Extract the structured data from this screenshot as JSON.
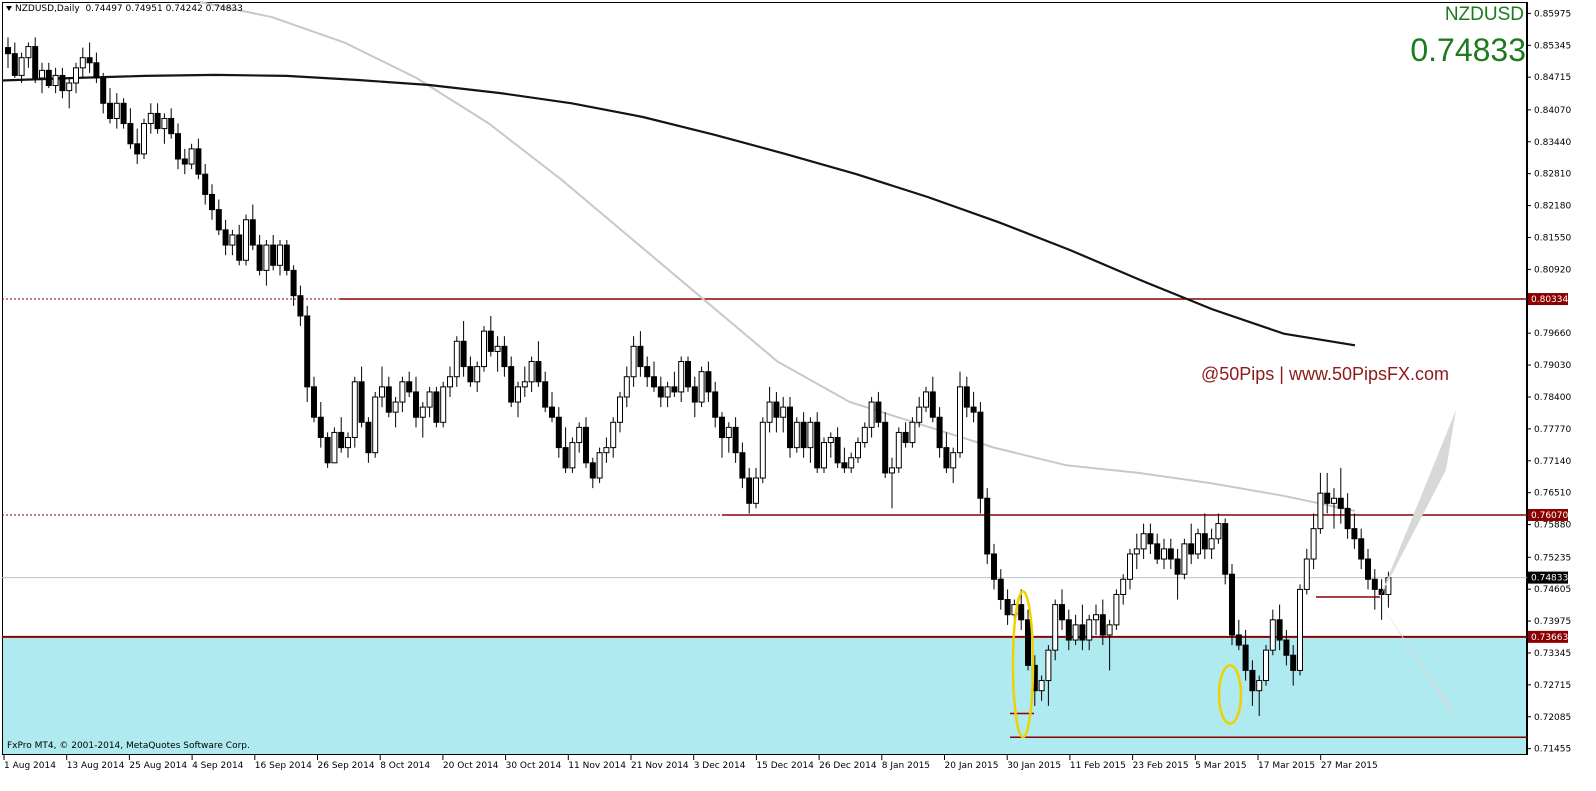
{
  "header": {
    "symbol_tf": "NZDUSD,Daily",
    "ohlc": "0.74497 0.74951 0.74242 0.74833",
    "symbol": "NZDUSD",
    "price": "0.74833"
  },
  "watermark": "@50Pips | www.50PipsFX.com",
  "copyright": "FxPro MT4, © 2001-2014, MetaQuotes Software Corp.",
  "colors": {
    "up_candle": "#ffffff",
    "down_candle": "#000000",
    "ma_slow": "#141414",
    "ma_fast": "#c8c8c8",
    "levels": "#8b0000",
    "zone": "#aeeaf0",
    "ellipse": "#f0d000",
    "text_green": "#1e7a1e"
  },
  "chart_data": {
    "type": "candlestick",
    "y_axis": {
      "ticks": [
        "0.85975",
        "0.85345",
        "0.84715",
        "0.84070",
        "0.83440",
        "0.82810",
        "0.82180",
        "0.81550",
        "0.80920",
        "0.79660",
        "0.79030",
        "0.78400",
        "0.77770",
        "0.77140",
        "0.76510",
        "0.75880",
        "0.75235",
        "0.74605",
        "0.73975",
        "0.73345",
        "0.72715",
        "0.72085",
        "0.71455"
      ]
    },
    "x_axis": {
      "ticks": [
        "1 Aug 2014",
        "13 Aug 2014",
        "25 Aug 2014",
        "4 Sep 2014",
        "16 Sep 2014",
        "26 Sep 2014",
        "8 Oct 2014",
        "20 Oct 2014",
        "30 Oct 2014",
        "11 Nov 2014",
        "21 Nov 2014",
        "3 Dec 2014",
        "15 Dec 2014",
        "26 Dec 2014",
        "8 Jan 2015",
        "20 Jan 2015",
        "30 Jan 2015",
        "11 Feb 2015",
        "23 Feb 2015",
        "5 Mar 2015",
        "17 Mar 2015",
        "27 Mar 2015"
      ]
    },
    "levels": [
      {
        "value": 0.80334,
        "label": "0.80334"
      },
      {
        "value": 0.7607,
        "label": "0.76070"
      },
      {
        "value": 0.73663,
        "label": "0.73663"
      }
    ],
    "current": {
      "value": 0.74833,
      "label": "0.74833"
    },
    "support_zone": [
      0.7145,
      0.73663
    ],
    "candles": [
      [
        0.853,
        0.855,
        0.849,
        0.8518
      ],
      [
        0.8518,
        0.854,
        0.847,
        0.8475
      ],
      [
        0.8475,
        0.852,
        0.846,
        0.851
      ],
      [
        0.851,
        0.854,
        0.849,
        0.8532
      ],
      [
        0.8532,
        0.855,
        0.846,
        0.847
      ],
      [
        0.847,
        0.85,
        0.844,
        0.8485
      ],
      [
        0.8485,
        0.85,
        0.845,
        0.8455
      ],
      [
        0.8455,
        0.849,
        0.844,
        0.8475
      ],
      [
        0.8475,
        0.849,
        0.843,
        0.8445
      ],
      [
        0.8445,
        0.847,
        0.841,
        0.846
      ],
      [
        0.846,
        0.85,
        0.844,
        0.849
      ],
      [
        0.849,
        0.853,
        0.847,
        0.851
      ],
      [
        0.851,
        0.854,
        0.848,
        0.85
      ],
      [
        0.85,
        0.852,
        0.846,
        0.847
      ],
      [
        0.847,
        0.848,
        0.84,
        0.842
      ],
      [
        0.842,
        0.845,
        0.838,
        0.839
      ],
      [
        0.839,
        0.844,
        0.837,
        0.842
      ],
      [
        0.842,
        0.843,
        0.837,
        0.838
      ],
      [
        0.838,
        0.841,
        0.833,
        0.834
      ],
      [
        0.834,
        0.837,
        0.83,
        0.832
      ],
      [
        0.832,
        0.839,
        0.831,
        0.838
      ],
      [
        0.838,
        0.842,
        0.836,
        0.84
      ],
      [
        0.84,
        0.842,
        0.836,
        0.837
      ],
      [
        0.837,
        0.84,
        0.834,
        0.839
      ],
      [
        0.839,
        0.841,
        0.835,
        0.836
      ],
      [
        0.836,
        0.838,
        0.829,
        0.831
      ],
      [
        0.831,
        0.833,
        0.828,
        0.83
      ],
      [
        0.83,
        0.834,
        0.829,
        0.833
      ],
      [
        0.833,
        0.835,
        0.827,
        0.828
      ],
      [
        0.828,
        0.83,
        0.822,
        0.824
      ],
      [
        0.824,
        0.826,
        0.819,
        0.821
      ],
      [
        0.821,
        0.823,
        0.816,
        0.817
      ],
      [
        0.817,
        0.819,
        0.812,
        0.814
      ],
      [
        0.814,
        0.817,
        0.812,
        0.816
      ],
      [
        0.816,
        0.818,
        0.81,
        0.811
      ],
      [
        0.811,
        0.82,
        0.81,
        0.819
      ],
      [
        0.819,
        0.822,
        0.813,
        0.814
      ],
      [
        0.814,
        0.816,
        0.808,
        0.809
      ],
      [
        0.809,
        0.815,
        0.806,
        0.814
      ],
      [
        0.814,
        0.816,
        0.809,
        0.81
      ],
      [
        0.81,
        0.815,
        0.808,
        0.814
      ],
      [
        0.814,
        0.815,
        0.808,
        0.809
      ],
      [
        0.809,
        0.81,
        0.802,
        0.804
      ],
      [
        0.804,
        0.806,
        0.798,
        0.8
      ],
      [
        0.8,
        0.802,
        0.783,
        0.786
      ],
      [
        0.786,
        0.788,
        0.779,
        0.78
      ],
      [
        0.78,
        0.783,
        0.774,
        0.776
      ],
      [
        0.776,
        0.777,
        0.77,
        0.771
      ],
      [
        0.771,
        0.778,
        0.771,
        0.777
      ],
      [
        0.777,
        0.78,
        0.773,
        0.774
      ],
      [
        0.774,
        0.777,
        0.772,
        0.776
      ],
      [
        0.776,
        0.788,
        0.774,
        0.787
      ],
      [
        0.787,
        0.79,
        0.778,
        0.779
      ],
      [
        0.779,
        0.78,
        0.771,
        0.773
      ],
      [
        0.773,
        0.785,
        0.772,
        0.784
      ],
      [
        0.784,
        0.79,
        0.782,
        0.786
      ],
      [
        0.786,
        0.788,
        0.78,
        0.781
      ],
      [
        0.781,
        0.784,
        0.778,
        0.783
      ],
      [
        0.783,
        0.788,
        0.781,
        0.787
      ],
      [
        0.787,
        0.789,
        0.784,
        0.785
      ],
      [
        0.785,
        0.788,
        0.778,
        0.78
      ],
      [
        0.78,
        0.783,
        0.776,
        0.782
      ],
      [
        0.782,
        0.786,
        0.78,
        0.785
      ],
      [
        0.785,
        0.786,
        0.778,
        0.779
      ],
      [
        0.779,
        0.787,
        0.778,
        0.786
      ],
      [
        0.786,
        0.79,
        0.784,
        0.788
      ],
      [
        0.788,
        0.796,
        0.786,
        0.795
      ],
      [
        0.795,
        0.799,
        0.788,
        0.79
      ],
      [
        0.79,
        0.792,
        0.786,
        0.787
      ],
      [
        0.787,
        0.791,
        0.785,
        0.79
      ],
      [
        0.79,
        0.798,
        0.789,
        0.797
      ],
      [
        0.797,
        0.8,
        0.792,
        0.793
      ],
      [
        0.793,
        0.796,
        0.789,
        0.794
      ],
      [
        0.794,
        0.796,
        0.788,
        0.79
      ],
      [
        0.79,
        0.792,
        0.782,
        0.783
      ],
      [
        0.783,
        0.787,
        0.78,
        0.786
      ],
      [
        0.786,
        0.79,
        0.784,
        0.787
      ],
      [
        0.787,
        0.792,
        0.785,
        0.791
      ],
      [
        0.791,
        0.795,
        0.786,
        0.787
      ],
      [
        0.787,
        0.789,
        0.781,
        0.782
      ],
      [
        0.782,
        0.785,
        0.779,
        0.78
      ],
      [
        0.78,
        0.782,
        0.772,
        0.774
      ],
      [
        0.774,
        0.778,
        0.769,
        0.77
      ],
      [
        0.77,
        0.776,
        0.769,
        0.775
      ],
      [
        0.775,
        0.779,
        0.773,
        0.778
      ],
      [
        0.778,
        0.78,
        0.77,
        0.771
      ],
      [
        0.771,
        0.772,
        0.766,
        0.768
      ],
      [
        0.768,
        0.774,
        0.767,
        0.773
      ],
      [
        0.773,
        0.776,
        0.771,
        0.774
      ],
      [
        0.774,
        0.78,
        0.772,
        0.779
      ],
      [
        0.779,
        0.785,
        0.777,
        0.784
      ],
      [
        0.784,
        0.79,
        0.782,
        0.788
      ],
      [
        0.788,
        0.796,
        0.786,
        0.794
      ],
      [
        0.794,
        0.797,
        0.788,
        0.79
      ],
      [
        0.79,
        0.792,
        0.786,
        0.788
      ],
      [
        0.788,
        0.791,
        0.785,
        0.786
      ],
      [
        0.786,
        0.788,
        0.782,
        0.784
      ],
      [
        0.784,
        0.787,
        0.782,
        0.786
      ],
      [
        0.786,
        0.789,
        0.784,
        0.785
      ],
      [
        0.785,
        0.792,
        0.783,
        0.791
      ],
      [
        0.791,
        0.792,
        0.785,
        0.786
      ],
      [
        0.786,
        0.788,
        0.78,
        0.783
      ],
      [
        0.783,
        0.79,
        0.782,
        0.789
      ],
      [
        0.789,
        0.791,
        0.783,
        0.785
      ],
      [
        0.785,
        0.787,
        0.778,
        0.78
      ],
      [
        0.78,
        0.781,
        0.772,
        0.776
      ],
      [
        0.776,
        0.779,
        0.773,
        0.778
      ],
      [
        0.778,
        0.78,
        0.771,
        0.773
      ],
      [
        0.773,
        0.775,
        0.766,
        0.768
      ],
      [
        0.768,
        0.77,
        0.761,
        0.763
      ],
      [
        0.763,
        0.77,
        0.762,
        0.768
      ],
      [
        0.768,
        0.78,
        0.767,
        0.779
      ],
      [
        0.779,
        0.786,
        0.777,
        0.783
      ],
      [
        0.783,
        0.785,
        0.777,
        0.78
      ],
      [
        0.78,
        0.784,
        0.777,
        0.782
      ],
      [
        0.782,
        0.784,
        0.772,
        0.774
      ],
      [
        0.774,
        0.78,
        0.773,
        0.779
      ],
      [
        0.779,
        0.781,
        0.772,
        0.774
      ],
      [
        0.774,
        0.78,
        0.771,
        0.779
      ],
      [
        0.779,
        0.781,
        0.769,
        0.77
      ],
      [
        0.77,
        0.776,
        0.769,
        0.775
      ],
      [
        0.775,
        0.777,
        0.772,
        0.776
      ],
      [
        0.776,
        0.778,
        0.77,
        0.771
      ],
      [
        0.771,
        0.774,
        0.769,
        0.77
      ],
      [
        0.77,
        0.773,
        0.769,
        0.772
      ],
      [
        0.772,
        0.776,
        0.771,
        0.775
      ],
      [
        0.775,
        0.779,
        0.774,
        0.778
      ],
      [
        0.778,
        0.784,
        0.776,
        0.783
      ],
      [
        0.783,
        0.785,
        0.778,
        0.779
      ],
      [
        0.779,
        0.781,
        0.768,
        0.769
      ],
      [
        0.769,
        0.772,
        0.762,
        0.77
      ],
      [
        0.77,
        0.778,
        0.769,
        0.777
      ],
      [
        0.777,
        0.779,
        0.774,
        0.775
      ],
      [
        0.775,
        0.78,
        0.774,
        0.779
      ],
      [
        0.779,
        0.784,
        0.778,
        0.782
      ],
      [
        0.782,
        0.786,
        0.781,
        0.785
      ],
      [
        0.785,
        0.788,
        0.779,
        0.78
      ],
      [
        0.78,
        0.782,
        0.772,
        0.774
      ],
      [
        0.774,
        0.777,
        0.769,
        0.77
      ],
      [
        0.77,
        0.774,
        0.767,
        0.773
      ],
      [
        0.773,
        0.789,
        0.772,
        0.786
      ],
      [
        0.786,
        0.788,
        0.78,
        0.782
      ],
      [
        0.782,
        0.785,
        0.779,
        0.781
      ],
      [
        0.781,
        0.783,
        0.761,
        0.764
      ],
      [
        0.764,
        0.766,
        0.751,
        0.753
      ],
      [
        0.753,
        0.755,
        0.746,
        0.748
      ],
      [
        0.748,
        0.75,
        0.742,
        0.744
      ],
      [
        0.744,
        0.746,
        0.739,
        0.741
      ],
      [
        0.741,
        0.744,
        0.737,
        0.743
      ],
      [
        0.743,
        0.746,
        0.738,
        0.74
      ],
      [
        0.74,
        0.742,
        0.73,
        0.731
      ],
      [
        0.731,
        0.733,
        0.723,
        0.726
      ],
      [
        0.726,
        0.729,
        0.724,
        0.728
      ],
      [
        0.728,
        0.735,
        0.723,
        0.734
      ],
      [
        0.734,
        0.744,
        0.732,
        0.743
      ],
      [
        0.743,
        0.746,
        0.738,
        0.74
      ],
      [
        0.74,
        0.742,
        0.734,
        0.736
      ],
      [
        0.736,
        0.741,
        0.735,
        0.739
      ],
      [
        0.739,
        0.743,
        0.734,
        0.736
      ],
      [
        0.736,
        0.741,
        0.734,
        0.74
      ],
      [
        0.74,
        0.743,
        0.737,
        0.741
      ],
      [
        0.741,
        0.744,
        0.735,
        0.737
      ],
      [
        0.737,
        0.74,
        0.73,
        0.739
      ],
      [
        0.739,
        0.746,
        0.738,
        0.745
      ],
      [
        0.745,
        0.749,
        0.743,
        0.748
      ],
      [
        0.748,
        0.754,
        0.746,
        0.753
      ],
      [
        0.753,
        0.757,
        0.75,
        0.754
      ],
      [
        0.754,
        0.759,
        0.752,
        0.757
      ],
      [
        0.757,
        0.759,
        0.753,
        0.755
      ],
      [
        0.755,
        0.757,
        0.751,
        0.752
      ],
      [
        0.752,
        0.756,
        0.75,
        0.754
      ],
      [
        0.754,
        0.756,
        0.75,
        0.752
      ],
      [
        0.752,
        0.754,
        0.744,
        0.749
      ],
      [
        0.749,
        0.756,
        0.748,
        0.755
      ],
      [
        0.755,
        0.759,
        0.751,
        0.753
      ],
      [
        0.753,
        0.758,
        0.752,
        0.757
      ],
      [
        0.757,
        0.761,
        0.752,
        0.754
      ],
      [
        0.754,
        0.758,
        0.752,
        0.756
      ],
      [
        0.756,
        0.761,
        0.755,
        0.759
      ],
      [
        0.759,
        0.76,
        0.747,
        0.749
      ],
      [
        0.749,
        0.751,
        0.735,
        0.737
      ],
      [
        0.737,
        0.74,
        0.734,
        0.735
      ],
      [
        0.735,
        0.738,
        0.728,
        0.73
      ],
      [
        0.73,
        0.732,
        0.723,
        0.726
      ],
      [
        0.726,
        0.729,
        0.721,
        0.728
      ],
      [
        0.728,
        0.735,
        0.727,
        0.734
      ],
      [
        0.734,
        0.742,
        0.733,
        0.74
      ],
      [
        0.74,
        0.743,
        0.734,
        0.736
      ],
      [
        0.736,
        0.738,
        0.731,
        0.733
      ],
      [
        0.733,
        0.735,
        0.727,
        0.73
      ],
      [
        0.73,
        0.747,
        0.729,
        0.746
      ],
      [
        0.746,
        0.754,
        0.745,
        0.752
      ],
      [
        0.752,
        0.761,
        0.75,
        0.758
      ],
      [
        0.758,
        0.769,
        0.757,
        0.765
      ],
      [
        0.765,
        0.769,
        0.761,
        0.763
      ],
      [
        0.763,
        0.766,
        0.758,
        0.764
      ],
      [
        0.764,
        0.77,
        0.759,
        0.762
      ],
      [
        0.762,
        0.765,
        0.756,
        0.758
      ],
      [
        0.758,
        0.761,
        0.754,
        0.756
      ],
      [
        0.756,
        0.758,
        0.75,
        0.752
      ],
      [
        0.752,
        0.754,
        0.746,
        0.748
      ],
      [
        0.748,
        0.75,
        0.742,
        0.746
      ],
      [
        0.746,
        0.748,
        0.74,
        0.745
      ],
      [
        0.745,
        0.7495,
        0.7424,
        0.7483
      ]
    ],
    "ma_slow": [
      0.8465,
      0.847,
      0.8474,
      0.8476,
      0.8474,
      0.8466,
      0.8456,
      0.844,
      0.842,
      0.8393,
      0.8358,
      0.832,
      0.828,
      0.8235,
      0.8185,
      0.813,
      0.807,
      0.8013,
      0.7965,
      0.7942
    ],
    "ma_fast": [
      0.862,
      0.859,
      0.854,
      0.847,
      0.838,
      0.827,
      0.815,
      0.803,
      0.791,
      0.783,
      0.7785,
      0.774,
      0.7705,
      0.769,
      0.767,
      0.7645,
      0.7615
    ],
    "ovals": [
      {
        "center": 0.733,
        "top": 0.7456,
        "bottom": 0.7168
      },
      {
        "center": 0.7255,
        "top": 0.731,
        "bottom": 0.7195
      }
    ],
    "segments": [
      {
        "value": 0.7215
      },
      {
        "value": 0.7168
      },
      {
        "value": 0.7445
      }
    ]
  }
}
